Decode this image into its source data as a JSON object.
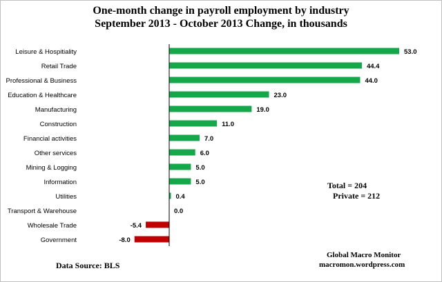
{
  "page": {
    "title_line1": "One-month change in payroll employment by industry",
    "title_line2": "September 2013 - October 2013  Change, in thousands",
    "totals_line1": "Total      = 204",
    "totals_line2": "Private  =  212",
    "source": "Data Source:  BLS",
    "credit_line1": "Global Macro Monitor",
    "credit_line2": "macromon.wordpress.com"
  },
  "chart_data": {
    "type": "bar",
    "orientation": "horizontal",
    "title": "One-month change in payroll employment by industry",
    "subtitle": "September 2013 - October 2013  Change, in thousands",
    "categories": [
      "Leisure & Hospitiality",
      "Retail Trade",
      "Professional & Business",
      "Education & Healthcare",
      "Manufacturing",
      "Construction",
      "Financial activities",
      "Other services",
      "Mining & Logging",
      "Information",
      "Utilities",
      "Transport & Warehouse",
      "Wholesale Trade",
      "Government"
    ],
    "values": [
      53.0,
      44.4,
      44.0,
      23.0,
      19.0,
      11.0,
      7.0,
      6.0,
      5.0,
      5.0,
      0.4,
      0.0,
      -5.4,
      -8.0
    ],
    "value_labels": [
      "53.0",
      "44.4",
      "44.0",
      "23.0",
      "19.0",
      "11.0",
      "7.0",
      "6.0",
      "5.0",
      "5.0",
      "0.4",
      "0.0",
      "-5.4",
      "-8.0"
    ],
    "xlim": [
      -8,
      53
    ],
    "grid": false,
    "legend": false,
    "colors": {
      "positive": "#14a84a",
      "negative": "#c00000"
    }
  }
}
